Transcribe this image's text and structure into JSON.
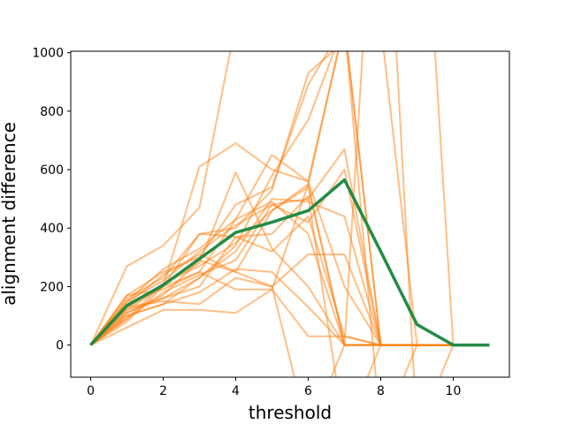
{
  "chart_data": {
    "type": "line",
    "title": "",
    "xlabel": "threshold",
    "ylabel": "alignment difference",
    "xlim": [
      -0.55,
      11.55
    ],
    "ylim": [
      -110,
      1005
    ],
    "xticks": [
      0,
      2,
      4,
      6,
      8,
      10
    ],
    "yticks": [
      0,
      200,
      400,
      600,
      800,
      1000
    ],
    "grid": false,
    "colors": {
      "runs": "#ff7f0e",
      "mean": "#238b45"
    },
    "runs": [
      {
        "x": [
          0,
          1,
          2,
          3,
          4,
          5,
          6,
          7,
          8,
          9,
          10,
          11
        ],
        "y": [
          0,
          270,
          340,
          470,
          1100,
          1200,
          1200,
          1200,
          1200,
          1200,
          1200,
          1200
        ]
      },
      {
        "x": [
          0,
          1,
          2,
          3,
          4,
          5,
          6,
          7,
          8,
          9,
          10,
          11
        ],
        "y": [
          0,
          130,
          200,
          380,
          400,
          530,
          930,
          1040,
          2000,
          2000,
          0,
          0
        ]
      },
      {
        "x": [
          0,
          1,
          2,
          3,
          4,
          5,
          6,
          7,
          8,
          9,
          10,
          11
        ],
        "y": [
          0,
          150,
          220,
          320,
          410,
          480,
          500,
          670,
          0,
          0,
          0,
          0
        ]
      },
      {
        "x": [
          0,
          1,
          2,
          3,
          4,
          5,
          6,
          7,
          8,
          9,
          10,
          11
        ],
        "y": [
          0,
          170,
          250,
          300,
          480,
          540,
          890,
          1100,
          1100,
          0,
          0,
          0
        ]
      },
      {
        "x": [
          0,
          1,
          2,
          3,
          4,
          5,
          6,
          7,
          8,
          9,
          10,
          11
        ],
        "y": [
          0,
          100,
          140,
          230,
          340,
          580,
          770,
          1100,
          0,
          0,
          0,
          0
        ]
      },
      {
        "x": [
          0,
          1,
          2,
          3,
          4,
          5,
          6,
          7,
          8,
          9,
          10,
          11
        ],
        "y": [
          0,
          120,
          200,
          250,
          430,
          650,
          560,
          200,
          0,
          0,
          0,
          0
        ]
      },
      {
        "x": [
          0,
          1,
          2,
          3,
          4,
          5,
          6,
          7,
          8,
          9,
          10,
          11
        ],
        "y": [
          0,
          90,
          180,
          240,
          290,
          480,
          420,
          600,
          0,
          0,
          0,
          0
        ]
      },
      {
        "x": [
          0,
          1,
          2,
          3,
          4,
          5,
          6,
          7,
          8,
          9,
          10,
          11
        ],
        "y": [
          0,
          110,
          160,
          230,
          320,
          500,
          490,
          440,
          0,
          0,
          0,
          0
        ]
      },
      {
        "x": [
          0,
          1,
          2,
          3,
          4,
          5,
          6,
          7,
          8,
          9,
          10,
          11
        ],
        "y": [
          0,
          160,
          230,
          380,
          370,
          380,
          510,
          -300,
          0,
          0,
          0,
          0
        ]
      },
      {
        "x": [
          0,
          1,
          2,
          3,
          4,
          5,
          6,
          7,
          8,
          9,
          10,
          11
        ],
        "y": [
          0,
          80,
          200,
          610,
          690,
          600,
          560,
          1100,
          0,
          0,
          0,
          0
        ]
      },
      {
        "x": [
          0,
          1,
          2,
          3,
          4,
          5,
          6,
          7,
          8,
          9,
          10,
          11
        ],
        "y": [
          0,
          120,
          160,
          200,
          370,
          320,
          440,
          30,
          0,
          0,
          0,
          0
        ]
      },
      {
        "x": [
          0,
          1,
          2,
          3,
          4,
          5,
          6,
          7,
          8,
          9,
          10,
          11
        ],
        "y": [
          0,
          140,
          240,
          310,
          250,
          200,
          310,
          310,
          0,
          0,
          0,
          0
        ]
      },
      {
        "x": [
          0,
          1,
          2,
          3,
          4,
          5,
          6,
          7,
          8,
          9,
          10,
          11
        ],
        "y": [
          0,
          100,
          140,
          180,
          260,
          250,
          130,
          0,
          0,
          0,
          0,
          0
        ]
      },
      {
        "x": [
          0,
          1,
          2,
          3,
          4,
          5,
          6,
          7,
          8,
          9,
          10,
          11
        ],
        "y": [
          0,
          60,
          120,
          120,
          110,
          190,
          30,
          30,
          0,
          0,
          0,
          0
        ]
      },
      {
        "x": [
          0,
          1,
          2,
          3,
          4,
          5,
          6,
          7,
          8,
          9,
          10,
          11
        ],
        "y": [
          0,
          130,
          150,
          140,
          230,
          200,
          -300,
          0,
          0,
          0,
          0,
          0
        ]
      },
      {
        "x": [
          0,
          1,
          2,
          3,
          4,
          5,
          6,
          7,
          8,
          9,
          10,
          11
        ],
        "y": [
          0,
          90,
          210,
          280,
          590,
          330,
          200,
          0,
          0,
          0,
          0,
          0
        ]
      },
      {
        "x": [
          0,
          1,
          2,
          3,
          4,
          5,
          6,
          7,
          8,
          9,
          10,
          11
        ],
        "y": [
          0,
          170,
          190,
          250,
          190,
          190,
          550,
          1100,
          -300,
          0,
          0,
          0
        ]
      },
      {
        "x": [
          0,
          1,
          2,
          3,
          4,
          5,
          6,
          7,
          8,
          9,
          10,
          11
        ],
        "y": [
          0,
          110,
          170,
          290,
          250,
          460,
          550,
          0,
          2000,
          -300,
          0,
          0
        ]
      },
      {
        "x": [
          0,
          1,
          2,
          3,
          4,
          5,
          6,
          7,
          8,
          9,
          10,
          11
        ],
        "y": [
          0,
          150,
          260,
          330,
          430,
          490,
          380,
          0,
          0,
          0,
          0,
          0
        ]
      },
      {
        "x": [
          0,
          1,
          2,
          3,
          4,
          5,
          6,
          7,
          8,
          9,
          10,
          11
        ],
        "y": [
          0,
          130,
          210,
          270,
          350,
          460,
          540,
          0,
          0,
          0,
          0,
          0
        ]
      }
    ],
    "mean": {
      "x": [
        0,
        1,
        2,
        3,
        4,
        5,
        6,
        7,
        8,
        9,
        10,
        11
      ],
      "y": [
        0,
        135,
        205,
        295,
        385,
        420,
        460,
        565,
        320,
        70,
        0,
        0
      ]
    }
  }
}
